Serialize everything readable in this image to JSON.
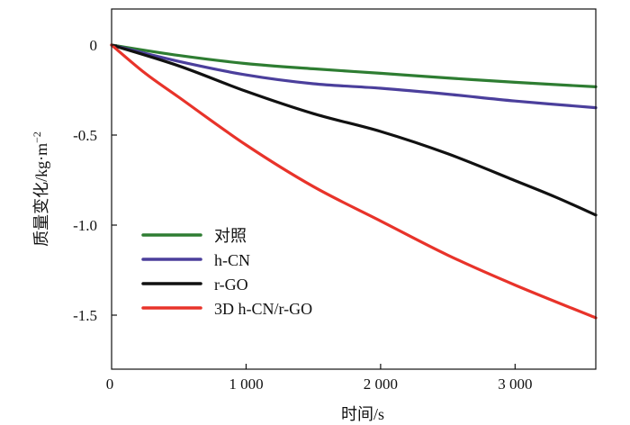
{
  "chart_data": {
    "type": "line",
    "title": "",
    "xlabel": "时间/s",
    "ylabel": "质量变化/kg·m",
    "ylabel_sup": "−2",
    "xlim": [
      0,
      3600
    ],
    "ylim": [
      -1.8,
      0.2
    ],
    "xticks": [
      0,
      1000,
      2000,
      3000
    ],
    "xtick_labels": [
      "0",
      "1 000",
      "2 000",
      "3 000"
    ],
    "yticks": [
      0,
      -0.5,
      -1.0,
      -1.5
    ],
    "ytick_labels": [
      "0",
      "-0.5",
      "-1.0",
      "-1.5"
    ],
    "grid": false,
    "legend_position": "bottom-left",
    "series": [
      {
        "name": "对照",
        "color": "#2e7d32",
        "x": [
          0,
          500,
          1000,
          1500,
          2000,
          2500,
          3000,
          3600
        ],
        "y": [
          0,
          -0.058,
          -0.103,
          -0.132,
          -0.157,
          -0.183,
          -0.207,
          -0.232
        ]
      },
      {
        "name": "h-CN",
        "color": "#4b3f9c",
        "x": [
          0,
          500,
          1000,
          1500,
          2000,
          2500,
          3000,
          3600
        ],
        "y": [
          0,
          -0.091,
          -0.166,
          -0.215,
          -0.24,
          -0.273,
          -0.311,
          -0.348
        ]
      },
      {
        "name": "r-GO",
        "color": "#111111",
        "x": [
          0,
          500,
          1000,
          1500,
          2000,
          2500,
          3000,
          3300,
          3600
        ],
        "y": [
          0,
          -0.116,
          -0.257,
          -0.381,
          -0.48,
          -0.604,
          -0.753,
          -0.844,
          -0.944
        ]
      },
      {
        "name": "3D h-CN/r-GO",
        "color": "#e8332a",
        "x": [
          0,
          250,
          500,
          1000,
          1500,
          2000,
          2500,
          3000,
          3600
        ],
        "y": [
          0,
          -0.157,
          -0.29,
          -0.555,
          -0.786,
          -0.977,
          -1.167,
          -1.333,
          -1.515
        ]
      }
    ]
  }
}
